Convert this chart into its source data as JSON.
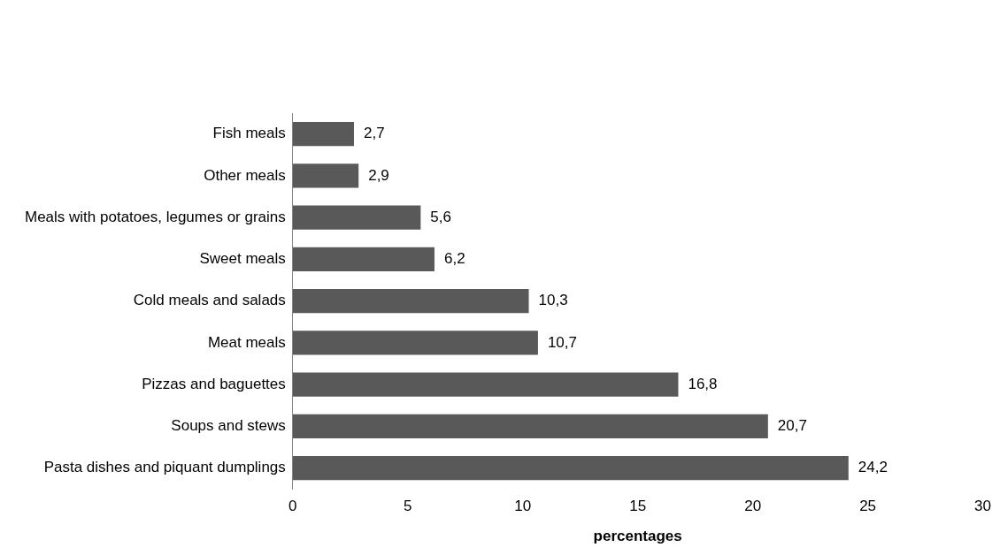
{
  "chart_data": {
    "type": "bar",
    "orientation": "horizontal",
    "xlabel": "percentages",
    "categories": [
      "Fish meals",
      "Other meals",
      "Meals with potatoes, legumes or grains",
      "Sweet meals",
      "Cold meals and salads",
      "Meat meals",
      "Pizzas and baguettes",
      "Soups and stews",
      "Pasta dishes and piquant dumplings"
    ],
    "values": [
      2.7,
      2.9,
      5.6,
      6.2,
      10.3,
      10.7,
      16.8,
      20.7,
      24.2
    ],
    "value_labels": [
      "2,7",
      "2,9",
      "5,6",
      "6,2",
      "10,3",
      "10,7",
      "16,8",
      "20,7",
      "24,2"
    ],
    "color": "#595959",
    "xlim": [
      0,
      30
    ],
    "xticks": [
      0,
      5,
      10,
      15,
      20,
      25,
      30
    ],
    "grid": false,
    "legend": false
  }
}
